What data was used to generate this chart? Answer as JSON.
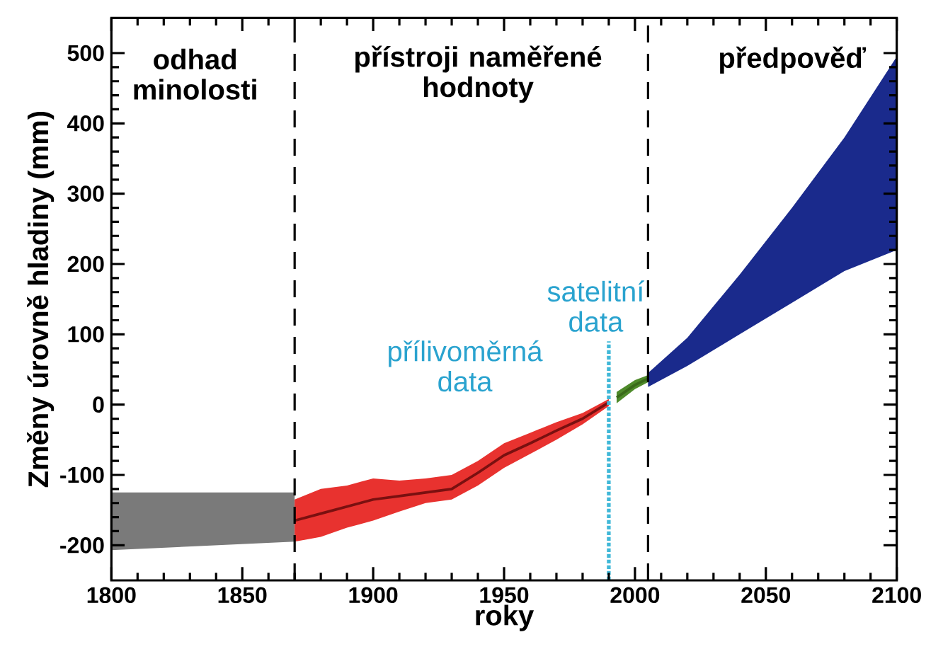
{
  "chart_data": {
    "type": "area",
    "xlabel": "roky",
    "ylabel": "Změny úrovně hladiny (mm)",
    "xlim": [
      1800,
      2100
    ],
    "xticks": [
      1800,
      1850,
      1900,
      1950,
      2000,
      2050,
      2100
    ],
    "ylim": [
      -250,
      550
    ],
    "yticks": [
      -200,
      -100,
      0,
      100,
      200,
      300,
      400,
      500
    ],
    "annotations": [
      "odhad minolosti",
      "přístroji naměřené hodnoty",
      "předpověď",
      "přílivoměrná data",
      "satelitní data"
    ],
    "ref_lines": [
      {
        "axis": "x",
        "value": 1870,
        "color": "#000000",
        "line_style": "dashed"
      },
      {
        "axis": "x",
        "value": 2005,
        "color": "#000000",
        "line_style": "dashed"
      }
    ],
    "series": [
      {
        "color": "#7a7a7a",
        "x": [
          1800,
          1835,
          1870
        ],
        "lower": [
          -207,
          -201,
          -195
        ],
        "upper": [
          -125,
          -125,
          -125
        ],
        "values": [
          null,
          null,
          null
        ]
      },
      {
        "color": "#e8322f",
        "x": [
          1870,
          1880,
          1890,
          1900,
          1910,
          1920,
          1930,
          1940,
          1950,
          1960,
          1970,
          1980,
          1990
        ],
        "lower": [
          -195,
          -188,
          -175,
          -165,
          -152,
          -140,
          -135,
          -115,
          -90,
          -70,
          -50,
          -28,
          -2
        ],
        "upper": [
          -135,
          -120,
          -115,
          -105,
          -108,
          -105,
          -100,
          -80,
          -55,
          -40,
          -25,
          -12,
          8
        ],
        "values": [
          null,
          null,
          null,
          null,
          null,
          null,
          null,
          null,
          null,
          null,
          null,
          null,
          null
        ]
      },
      {
        "type": "line",
        "color": "#7a1010",
        "x": [
          1870,
          1880,
          1890,
          1900,
          1910,
          1920,
          1930,
          1940,
          1950,
          1960,
          1970,
          1980,
          1990
        ],
        "values": [
          -165,
          -155,
          -145,
          -135,
          -130,
          -125,
          -120,
          -97,
          -72,
          -55,
          -37,
          -20,
          3
        ]
      },
      {
        "color": "#4e8a2a",
        "x": [
          1993,
          2000,
          2005
        ],
        "lower": [
          2,
          22,
          32
        ],
        "upper": [
          18,
          35,
          42
        ],
        "values": [
          null,
          null,
          null
        ]
      },
      {
        "type": "line",
        "color": "#3a6a1a",
        "x": [
          1993,
          2000,
          2005
        ],
        "values": [
          10,
          28,
          37
        ]
      },
      {
        "color": "#1a2a8c",
        "x": [
          2005,
          2020,
          2040,
          2060,
          2080,
          2100
        ],
        "lower": [
          25,
          55,
          100,
          145,
          190,
          220
        ],
        "upper": [
          45,
          95,
          185,
          280,
          380,
          495
        ],
        "values": [
          null,
          null,
          null,
          null,
          null,
          null
        ]
      },
      {
        "type": "line",
        "color": "#40b8d8",
        "line_style": "dotted",
        "x": [
          1990,
          1990
        ],
        "values": [
          -250,
          90
        ]
      }
    ]
  }
}
